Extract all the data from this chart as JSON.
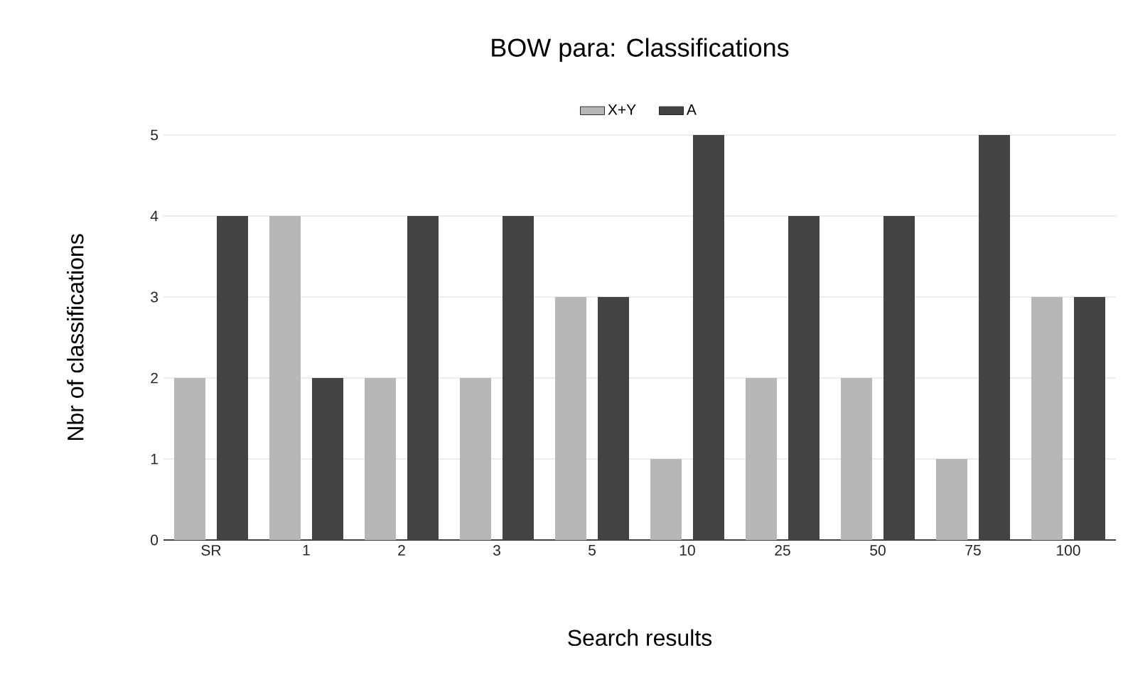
{
  "chart_data": {
    "type": "bar",
    "title": "BOW para: Classifications",
    "xlabel": "Search results",
    "ylabel": "Nbr of classifications",
    "categories": [
      "SR",
      "1",
      "2",
      "3",
      "5",
      "10",
      "25",
      "50",
      "75",
      "100"
    ],
    "series": [
      {
        "name": "X+Y",
        "color": "#b7b7b7",
        "values": [
          2,
          4,
          2,
          2,
          3,
          1,
          2,
          2,
          1,
          3
        ]
      },
      {
        "name": "A",
        "color": "#434343",
        "values": [
          4,
          2,
          4,
          4,
          3,
          5,
          4,
          4,
          5,
          3
        ]
      }
    ],
    "ylim": [
      0,
      5
    ],
    "yticks": [
      0,
      1,
      2,
      3,
      4,
      5
    ],
    "grid": "y",
    "legend": "top"
  }
}
